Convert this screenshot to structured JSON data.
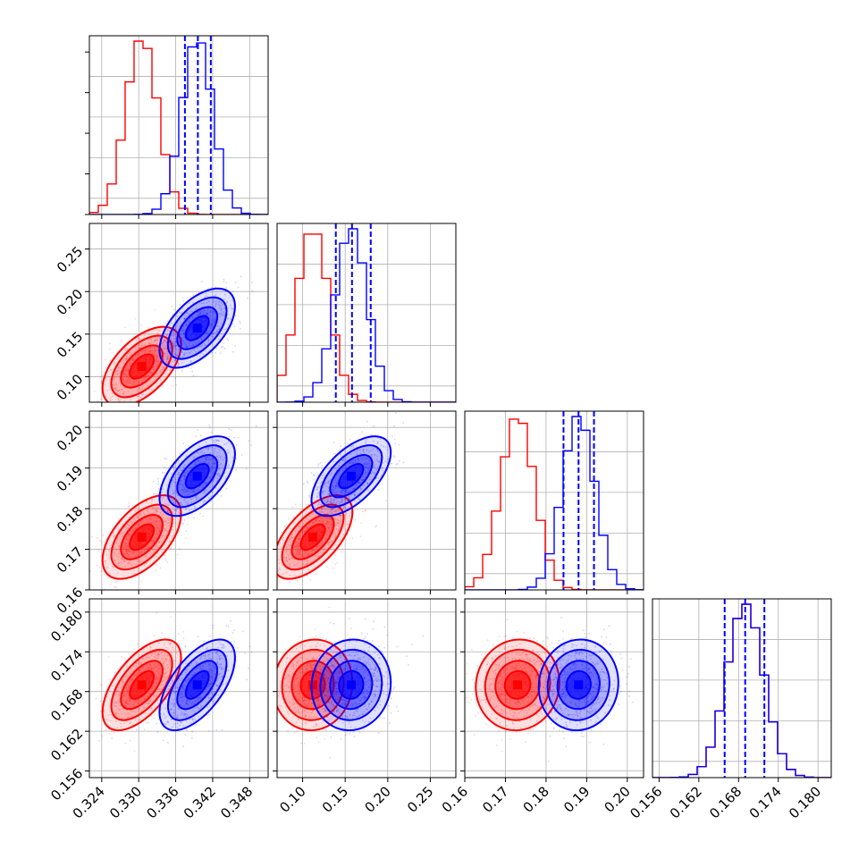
{
  "chart_data": {
    "type": "corner",
    "params": [
      {
        "ticks": [
          "0.324",
          "0.330",
          "0.336",
          "0.342",
          "0.348"
        ],
        "tick_values": [
          0.324,
          0.33,
          0.336,
          0.342,
          0.348
        ],
        "range": [
          0.322,
          0.351
        ]
      },
      {
        "ticks": [
          "0.10",
          "0.15",
          "0.20",
          "0.25"
        ],
        "tick_values": [
          0.1,
          0.15,
          0.2,
          0.25
        ],
        "range": [
          0.07,
          0.28
        ]
      },
      {
        "ticks": [
          "0.16",
          "0.17",
          "0.18",
          "0.19",
          "0.20"
        ],
        "tick_values": [
          0.16,
          0.17,
          0.18,
          0.19,
          0.2
        ],
        "range": [
          0.16,
          0.204
        ]
      },
      {
        "ticks": [
          "0.156",
          "0.162",
          "0.168",
          "0.174",
          "0.180"
        ],
        "tick_values": [
          0.156,
          0.162,
          0.168,
          0.174,
          0.18
        ],
        "range": [
          0.155,
          0.182
        ]
      }
    ],
    "series": [
      {
        "color": "#ff0000",
        "mean": [
          0.3305,
          0.112,
          0.173,
          0.169
        ],
        "sd": [
          0.0026,
          0.019,
          0.0042,
          0.0028
        ]
      },
      {
        "color": "#0000ff",
        "mean": [
          0.3395,
          0.157,
          0.188,
          0.169
        ],
        "sd": [
          0.0025,
          0.019,
          0.004,
          0.0028
        ]
      }
    ],
    "correlations": {
      "0-1": 0.55,
      "0-2": 0.55,
      "1-2": 0.6,
      "0-3": 0.6,
      "1-3": 0.05,
      "2-3": 0.05
    },
    "quantile_lines": {
      "color": "#0000ff",
      "values": [
        [
          0.3375,
          0.3396,
          0.3417
        ],
        [
          0.139,
          0.158,
          0.18
        ],
        [
          0.1843,
          0.188,
          0.1918
        ],
        [
          0.1659,
          0.169,
          0.1719
        ]
      ]
    },
    "grid": true
  }
}
